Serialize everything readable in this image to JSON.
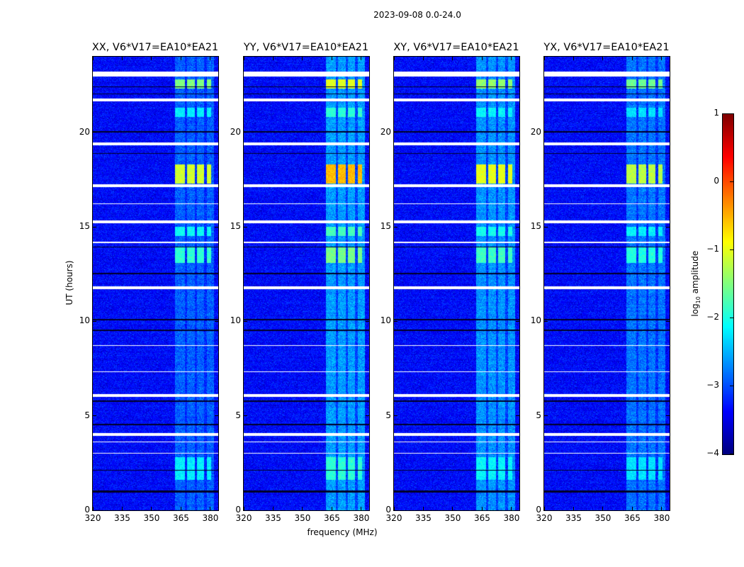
{
  "figure": {
    "suptitle": "2023-09-08 0.0-24.0",
    "xlabel": "frequency (MHz)",
    "ylabel": "UT (hours)",
    "colorbar_label_prefix": "log",
    "colorbar_label_sub": "10",
    "colorbar_label_suffix": " amplitude"
  },
  "chart_data": {
    "type": "heatmap",
    "colormap": "jet",
    "xlim": [
      320,
      384
    ],
    "ylim": [
      0,
      24
    ],
    "xticks": [
      320,
      335,
      350,
      365,
      380
    ],
    "yticks": [
      0,
      5,
      10,
      15,
      20
    ],
    "clim": [
      -4,
      1
    ],
    "colorbar_ticks": [
      1,
      0,
      -1,
      -2,
      -3,
      -4
    ],
    "colorbar_tick_labels": [
      "1",
      "0",
      "−1",
      "−2",
      "−3",
      "−4"
    ],
    "panels": [
      {
        "title": "XX, V6*V17=EA10*EA21",
        "band_boost": 0.45,
        "patch_scale": 1.0
      },
      {
        "title": "YY, V6*V17=EA10*EA21",
        "band_boost": 0.75,
        "patch_scale": 1.25
      },
      {
        "title": "XY, V6*V17=EA10*EA21",
        "band_boost": 0.7,
        "patch_scale": 1.05
      },
      {
        "title": "YX, V6*V17=EA10*EA21",
        "band_boost": 0.55,
        "patch_scale": 0.95
      }
    ],
    "background_level": -3.35,
    "rfi_band_MHz": [
      362,
      382
    ],
    "flagged_hours": [
      [
        22.95,
        23.2
      ],
      [
        21.65,
        21.8
      ],
      [
        19.3,
        19.45
      ],
      [
        17.1,
        17.25
      ],
      [
        15.2,
        15.35
      ],
      [
        11.7,
        11.85
      ],
      [
        6.0,
        6.15
      ],
      [
        3.95,
        4.1
      ],
      [
        3.6,
        3.65
      ],
      [
        3.0,
        3.05
      ],
      [
        8.7,
        8.75
      ],
      [
        7.3,
        7.35
      ],
      [
        14.15,
        14.2
      ],
      [
        16.2,
        16.25
      ]
    ],
    "dropout_hours": [
      [
        0.95,
        1.05
      ],
      [
        10.05,
        10.12
      ],
      [
        12.5,
        12.56
      ],
      [
        4.5,
        4.56
      ],
      [
        5.75,
        5.8
      ],
      [
        13.9,
        13.95
      ],
      [
        18.85,
        18.9
      ],
      [
        20.0,
        20.05
      ],
      [
        22.0,
        22.05
      ],
      [
        22.4,
        22.44
      ],
      [
        9.5,
        9.55
      ],
      [
        2.1,
        2.13
      ]
    ],
    "rfi_patches": [
      {
        "hours": [
          17.3,
          18.3
        ],
        "level": -1.1
      },
      {
        "hours": [
          22.3,
          22.8
        ],
        "level": -1.5
      },
      {
        "hours": [
          13.1,
          13.9
        ],
        "level": -1.9
      },
      {
        "hours": [
          14.5,
          15.0
        ],
        "level": -2.1
      },
      {
        "hours": [
          1.6,
          2.8
        ],
        "level": -2.2
      },
      {
        "hours": [
          20.8,
          21.3
        ],
        "level": -2.2
      }
    ]
  }
}
